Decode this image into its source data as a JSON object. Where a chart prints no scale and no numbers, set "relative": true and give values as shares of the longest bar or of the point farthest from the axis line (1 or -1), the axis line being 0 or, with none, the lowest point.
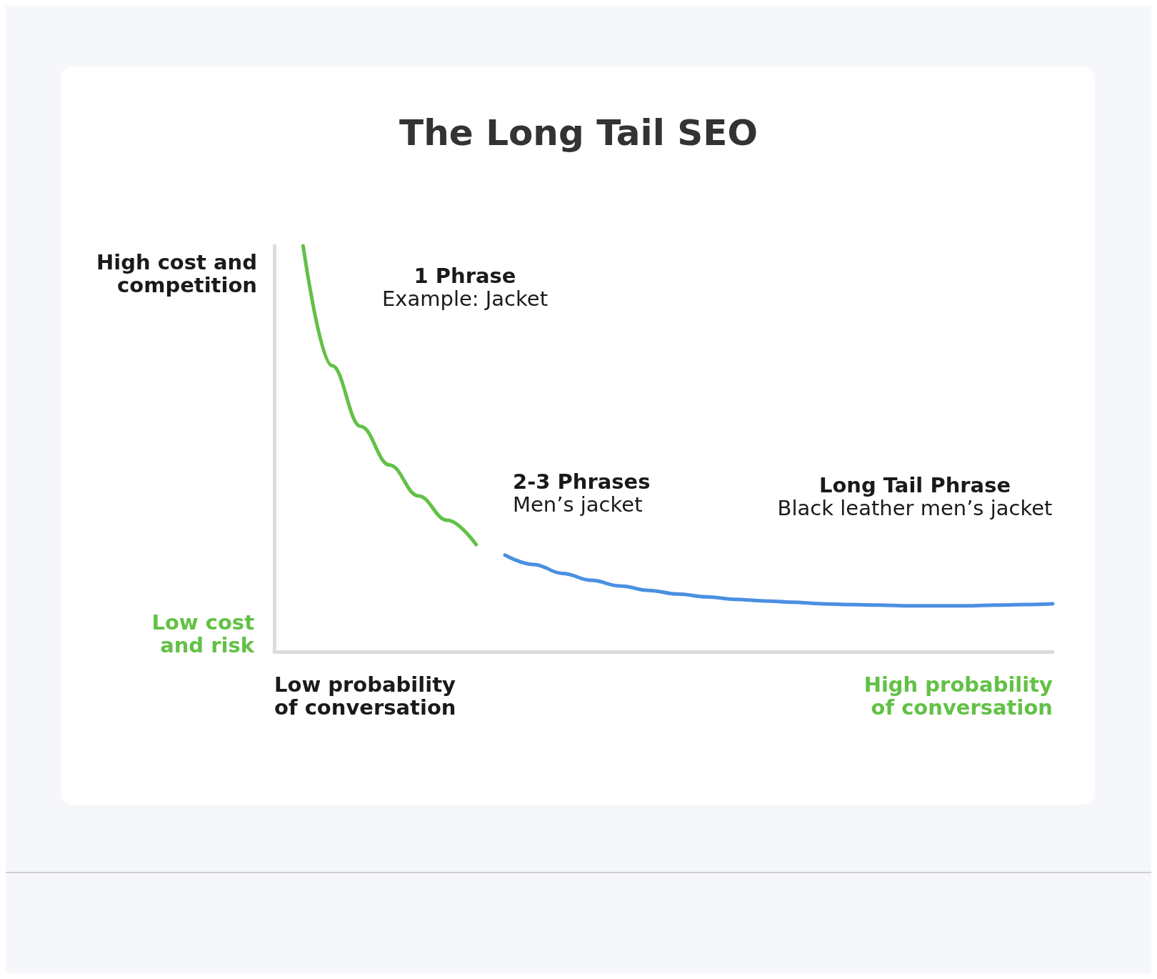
{
  "chart_data": {
    "type": "line",
    "title": "The Long Tail SEO",
    "relative": true,
    "categories": [
      null,
      null,
      null,
      null,
      null,
      null,
      null,
      null,
      null,
      null,
      null,
      null,
      null,
      null,
      null,
      null,
      null,
      null,
      null,
      null,
      null,
      null,
      null,
      null,
      null,
      null,
      null,
      null
    ],
    "series": [
      {
        "color": "#62c146",
        "values": [
          null,
          1,
          0.705,
          0.555,
          0.46,
          0.384,
          0.324,
          0.264,
          null,
          null,
          null,
          null,
          null,
          null,
          null,
          null,
          null,
          null,
          null,
          null,
          null,
          null,
          null,
          null,
          null,
          null,
          null,
          null
        ]
      },
      {
        "color": "#4a90e2",
        "values": [
          null,
          null,
          null,
          null,
          null,
          null,
          null,
          null,
          0.238,
          0.215,
          0.193,
          0.176,
          0.162,
          0.151,
          0.142,
          0.135,
          0.129,
          0.125,
          0.122,
          0.118,
          0.116,
          0.115,
          0.113,
          0.113,
          0.113,
          0.115,
          0.116,
          0.118
        ]
      }
    ],
    "annotations": [
      "High cost and\ncompetition",
      "Low cost\nand risk",
      "Low probability\nof conversation",
      "High probability\nof conversation",
      "1 Phrase\nExample: Jacket",
      "2-3 Phrases\nMen’s jacket",
      "Long Tail Phrase\nBlack leather men’s jacket"
    ],
    "grid": false,
    "marker": "none",
    "line_style": "solid"
  }
}
